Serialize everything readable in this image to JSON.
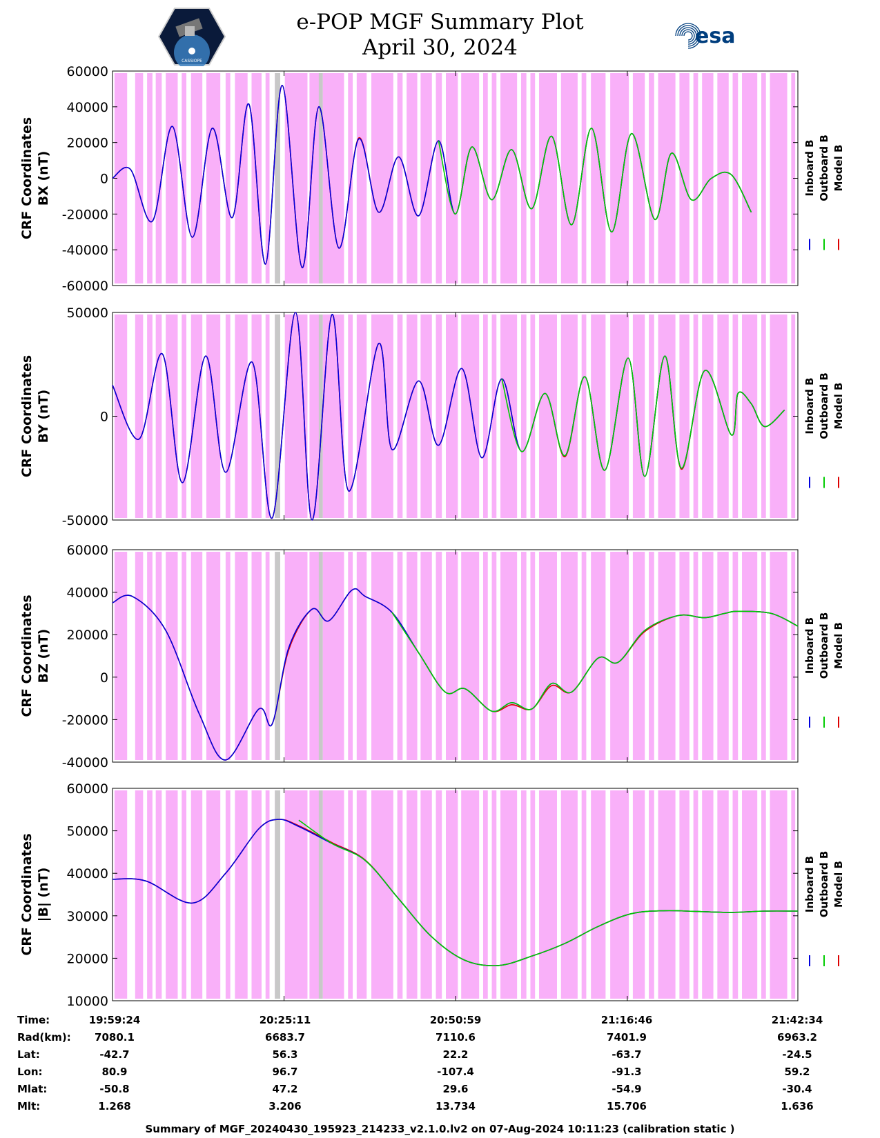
{
  "header": {
    "title_line1": "e-POP MGF Summary Plot",
    "title_line2": "April 30, 2024",
    "left_logo_text": "CASSIOPE",
    "right_logo_text": "esa"
  },
  "colors": {
    "inboard": "#0000dd",
    "outboard": "#00cc00",
    "model": "#dd0000",
    "shade_magenta": "#f9b0f9",
    "shade_gray": "#c8c8c8"
  },
  "chart_data": [
    {
      "type": "line",
      "ylabel_line1": "CRF Coordinates",
      "ylabel_line2": "BX (nT)",
      "ylim": [
        -60000,
        60000
      ],
      "yticks": [
        -60000,
        -40000,
        -20000,
        0,
        20000,
        40000,
        60000
      ],
      "xticks": [
        "19:59:24",
        "20:25:11",
        "20:50:59",
        "21:16:46",
        "21:42:34"
      ],
      "legend": [
        "Inboard B",
        "Outboard B",
        "Model B"
      ],
      "x_minutes": [
        0,
        2.7,
        6,
        9,
        12,
        15,
        18,
        20.5,
        23,
        25.5,
        28.5,
        31,
        34,
        37,
        40,
        43,
        46,
        49,
        51.5,
        54,
        57,
        60,
        63,
        66,
        69,
        72,
        75,
        78,
        81.5,
        84,
        87,
        90,
        93,
        96,
        99,
        102,
        103
      ],
      "series": [
        {
          "name": "Inboard B",
          "values": [
            0,
            5000,
            -24000,
            29000,
            -33000,
            28000,
            -22000,
            41500,
            -48000,
            52000,
            -50000,
            40000,
            -39000,
            22000,
            -19000,
            12000,
            -21000,
            21000,
            -20000,
            17500,
            -12000,
            16000,
            -17000,
            23500,
            -26000,
            28000,
            -30000,
            25000,
            -23000,
            14000,
            -12000,
            0,
            2000,
            -19000,
            null,
            null,
            null
          ]
        },
        {
          "name": "Outboard B",
          "values": [
            null,
            null,
            null,
            null,
            null,
            null,
            null,
            null,
            null,
            null,
            null,
            null,
            null,
            null,
            null,
            null,
            null,
            21000,
            -20000,
            17500,
            -12000,
            16000,
            -17000,
            23500,
            -26000,
            28000,
            -30000,
            25000,
            -23000,
            14000,
            -12000,
            0,
            2000,
            -19000,
            null,
            null,
            null
          ]
        },
        {
          "name": "Model B",
          "values": [
            0,
            5000,
            -24000,
            29000,
            -33000,
            28000,
            -22000,
            41500,
            -48000,
            52000,
            -50000,
            40000,
            -39000,
            22500,
            -19000,
            12000,
            -21000,
            21000,
            -20000,
            17500,
            -12000,
            16000,
            -17000,
            23500,
            -26000,
            28000,
            -30000,
            25000,
            -23000,
            14000,
            -12000,
            0,
            2000,
            -19000,
            null,
            null,
            null
          ]
        }
      ]
    },
    {
      "type": "line",
      "ylabel_line1": "CRF Coordinates",
      "ylabel_line2": "BY (nT)",
      "ylim": [
        -50000,
        50000
      ],
      "yticks": [
        -50000,
        0,
        50000
      ],
      "xticks": [
        "19:59:24",
        "20:25:11",
        "20:50:59",
        "21:16:46",
        "21:42:34"
      ],
      "legend": [
        "Inboard B",
        "Outboard B",
        "Model B"
      ],
      "x_minutes": [
        0,
        4,
        7.5,
        10.5,
        14,
        17,
        21,
        24,
        27.5,
        30,
        33,
        35.5,
        40,
        42,
        46,
        49,
        52.5,
        55.5,
        58.5,
        61.5,
        65,
        68,
        71,
        74,
        77.5,
        80,
        83,
        85.5,
        89,
        93,
        94,
        96,
        98,
        101,
        103
      ],
      "series": [
        {
          "name": "Inboard B",
          "values": [
            15000,
            -11000,
            30000,
            -32000,
            29000,
            -27000,
            26000,
            -49000,
            50000,
            -50000,
            49000,
            -36000,
            35000,
            -16000,
            17000,
            -14000,
            23000,
            -20000,
            18000,
            -17000,
            11000,
            -19000,
            19000,
            -26000,
            28000,
            -29000,
            29000,
            -25000,
            22000,
            -9000,
            11000,
            6000,
            -5000,
            3000,
            null
          ]
        },
        {
          "name": "Outboard B",
          "values": [
            null,
            null,
            null,
            null,
            null,
            null,
            null,
            null,
            null,
            null,
            null,
            null,
            null,
            null,
            null,
            null,
            null,
            null,
            18000,
            -17000,
            11000,
            -19000,
            19000,
            -26000,
            28000,
            -29000,
            29000,
            -25000,
            22000,
            -9000,
            11000,
            6000,
            -5000,
            3000,
            null
          ]
        },
        {
          "name": "Model B",
          "values": [
            15000,
            -11000,
            30000,
            -32000,
            29000,
            -27000,
            26000,
            -49000,
            50000,
            -50000,
            49000,
            -36000,
            35000,
            -16000,
            17000,
            -14000,
            23000,
            -20000,
            18000,
            -17000,
            11000,
            -19500,
            19000,
            -26000,
            28000,
            -29000,
            29000,
            -25500,
            22000,
            -9000,
            11000,
            6000,
            -5000,
            3000,
            null
          ]
        }
      ]
    },
    {
      "type": "line",
      "ylabel_line1": "CRF Coordinates",
      "ylabel_line2": "BZ (nT)",
      "ylim": [
        -40000,
        60000
      ],
      "yticks": [
        -40000,
        -20000,
        0,
        20000,
        40000,
        60000
      ],
      "xticks": [
        "19:59:24",
        "20:25:11",
        "20:50:59",
        "21:16:46",
        "21:42:34"
      ],
      "legend": [
        "Inboard B",
        "Outboard B",
        "Model B"
      ],
      "x_minutes": [
        0,
        3,
        8,
        13,
        17,
        22,
        24,
        26.5,
        30,
        32.5,
        36,
        38,
        42,
        46,
        50,
        53,
        57,
        60,
        63,
        66,
        69,
        73,
        76,
        80,
        85,
        89,
        92,
        94,
        99,
        103
      ],
      "series": [
        {
          "name": "Inboard B",
          "values": [
            35000,
            38000,
            22000,
            -17000,
            -39000,
            -15000,
            -22000,
            14000,
            32000,
            26500,
            41000,
            38000,
            30500,
            11500,
            -7000,
            -5500,
            -16000,
            -12000,
            -15000,
            -3000,
            -7000,
            9000,
            7000,
            22000,
            29000,
            28000,
            30000,
            31000,
            30000,
            24000
          ]
        },
        {
          "name": "Outboard B",
          "values": [
            null,
            null,
            null,
            null,
            null,
            null,
            null,
            null,
            null,
            null,
            null,
            null,
            30500,
            11500,
            -7000,
            -5500,
            -16000,
            -12000,
            -15000,
            -3000,
            -7000,
            9000,
            7000,
            22000,
            29000,
            28000,
            30000,
            31000,
            30000,
            24000
          ]
        },
        {
          "name": "Model B",
          "values": [
            35000,
            38000,
            22000,
            -17000,
            -39000,
            -15000,
            -22000,
            13000,
            32000,
            26500,
            41000,
            38000,
            30500,
            11500,
            -7000,
            -5500,
            -16000,
            -13000,
            -15000,
            -4000,
            -7000,
            9000,
            7000,
            21500,
            29000,
            28000,
            30000,
            31000,
            30000,
            24000
          ]
        }
      ]
    },
    {
      "type": "line",
      "ylabel_line1": "CRF Coordinates",
      "ylabel_line2": "|B| (nT)",
      "ylim": [
        10000,
        60000
      ],
      "yticks": [
        10000,
        20000,
        30000,
        40000,
        50000,
        60000
      ],
      "xticks": [
        "19:59:24",
        "20:25:11",
        "20:50:59",
        "21:16:46",
        "21:42:34"
      ],
      "legend": [
        "Inboard B",
        "Outboard B",
        "Model B"
      ],
      "x_minutes": [
        0,
        5,
        12,
        17,
        22,
        25,
        28,
        33,
        38,
        43,
        48,
        53,
        58,
        63,
        68,
        73,
        78,
        83,
        88,
        93,
        98,
        103
      ],
      "series": [
        {
          "name": "Inboard B",
          "values": [
            38600,
            38200,
            33000,
            40000,
            50500,
            52700,
            51000,
            47000,
            43000,
            34000,
            25000,
            19500,
            18300,
            20500,
            23500,
            27500,
            30500,
            31200,
            31000,
            30800,
            31100,
            31100
          ]
        },
        {
          "name": "Outboard B",
          "values": [
            null,
            null,
            null,
            null,
            null,
            null,
            52500,
            47000,
            43000,
            34000,
            25000,
            19500,
            18300,
            20500,
            23500,
            27500,
            30500,
            31200,
            31000,
            30800,
            31100,
            31100
          ]
        },
        {
          "name": "Model B",
          "values": [
            38600,
            38200,
            33000,
            40000,
            50500,
            52700,
            51200,
            47200,
            43100,
            34000,
            25000,
            19500,
            18300,
            20500,
            23500,
            27500,
            30500,
            31200,
            31000,
            30800,
            31100,
            31100
          ]
        }
      ]
    }
  ],
  "shading": {
    "x_range_minutes": [
      0,
      103
    ],
    "magenta_intervals": [
      [
        0.3,
        2.2
      ],
      [
        3.4,
        4.6
      ],
      [
        5.2,
        6.0
      ],
      [
        6.5,
        7.4
      ],
      [
        8.0,
        9.8
      ],
      [
        10.4,
        11.1
      ],
      [
        11.8,
        13.5
      ],
      [
        14.1,
        16.2
      ],
      [
        17.0,
        17.7
      ],
      [
        18.4,
        20.3
      ],
      [
        20.9,
        22.4
      ],
      [
        23.0,
        23.6
      ],
      [
        24.4,
        25.2
      ],
      [
        25.9,
        29.3
      ],
      [
        29.6,
        31.2
      ],
      [
        31.6,
        34.8
      ],
      [
        35.4,
        36.1
      ],
      [
        36.7,
        38.2
      ],
      [
        38.9,
        42.2
      ],
      [
        42.8,
        43.6
      ],
      [
        44.2,
        45.8
      ],
      [
        46.3,
        48.0
      ],
      [
        48.6,
        49.5
      ],
      [
        50.1,
        51.9
      ],
      [
        52.4,
        55.1
      ],
      [
        55.7,
        56.4
      ],
      [
        57.0,
        57.7
      ],
      [
        58.3,
        60.8
      ],
      [
        61.4,
        62.2
      ],
      [
        62.8,
        63.5
      ],
      [
        64.1,
        66.8
      ],
      [
        67.4,
        69.9
      ],
      [
        70.5,
        71.2
      ],
      [
        71.9,
        74.1
      ],
      [
        74.8,
        77.6
      ],
      [
        78.2,
        80.0
      ],
      [
        80.6,
        81.4
      ],
      [
        82.0,
        84.6
      ],
      [
        85.2,
        86.7
      ],
      [
        87.3,
        88.0
      ],
      [
        88.6,
        90.3
      ],
      [
        90.9,
        92.6
      ],
      [
        93.2,
        94.0
      ],
      [
        94.6,
        96.9
      ],
      [
        97.5,
        98.2
      ],
      [
        98.8,
        101.4
      ],
      [
        102.0,
        102.6
      ]
    ],
    "gray_intervals": [
      [
        24.4,
        25.2
      ],
      [
        31.0,
        31.6
      ]
    ]
  },
  "info_table": {
    "rows": [
      {
        "label": "Time:",
        "values": [
          "19:59:24",
          "20:25:11",
          "20:50:59",
          "21:16:46",
          "21:42:34"
        ]
      },
      {
        "label": "Rad(km):",
        "values": [
          "7080.1",
          "6683.7",
          "7110.6",
          "7401.9",
          "6963.2"
        ]
      },
      {
        "label": "Lat:",
        "values": [
          "-42.7",
          "56.3",
          "22.2",
          "-63.7",
          "-24.5"
        ]
      },
      {
        "label": "Lon:",
        "values": [
          "80.9",
          "96.7",
          "-107.4",
          "-91.3",
          "59.2"
        ]
      },
      {
        "label": "Mlat:",
        "values": [
          "-50.8",
          "47.2",
          "29.6",
          "-54.9",
          "-30.4"
        ]
      },
      {
        "label": "Mlt:",
        "values": [
          "1.268",
          "3.206",
          "13.734",
          "15.706",
          "1.636"
        ]
      }
    ]
  },
  "footer": "Summary of MGF_20240430_195923_214233_v2.1.0.lv2 on 07-Aug-2024 10:11:23 (calibration static )"
}
